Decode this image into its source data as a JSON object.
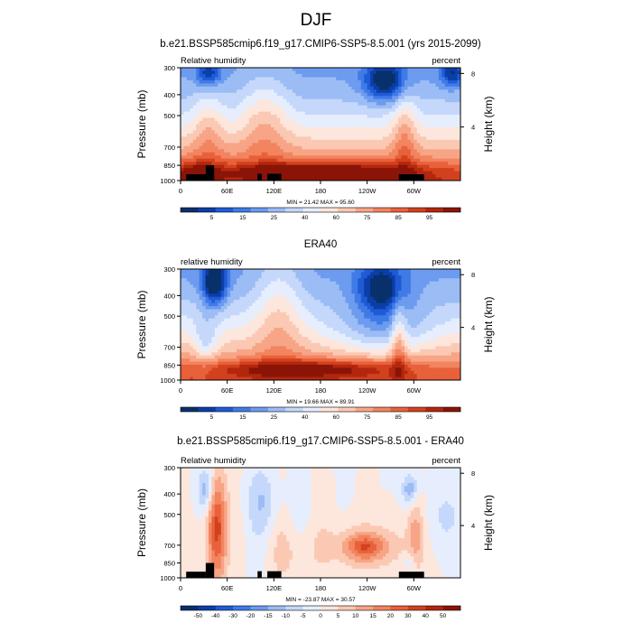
{
  "page": {
    "title": "DJF"
  },
  "colors": {
    "levels_abs": [
      "#08306b",
      "#0b3ea8",
      "#1f5bd6",
      "#3f7be6",
      "#6c9bef",
      "#9bbcf5",
      "#c5d8fb",
      "#e6eefd",
      "#fde6dc",
      "#fbc9b3",
      "#f7a586",
      "#f2845f",
      "#e8613a",
      "#d2411e",
      "#b3270e",
      "#8a1407"
    ],
    "levels_diff": [
      "#08306b",
      "#0b3ea8",
      "#1f5bd6",
      "#3f7be6",
      "#6c9bef",
      "#9bbcf5",
      "#c5d8fb",
      "#e6eefd",
      "#fde6dc",
      "#fbc9b3",
      "#f7a586",
      "#f2845f",
      "#e8613a",
      "#d2411e",
      "#b3270e",
      "#8a1407"
    ],
    "topography": "#000000"
  },
  "chart_data": [
    {
      "type": "heatmap",
      "title": "b.e21.BSSP585cmip6.f19_g17.CMIP6-SSP5-8.5.001 (yrs 2015-2099)",
      "left_label": "Relative humidity",
      "right_label": "percent",
      "ylabel": "Pressure (mb)",
      "y2label": "Height (km)",
      "x_ticks": [
        "0",
        "60E",
        "120E",
        "180",
        "120W",
        "60W"
      ],
      "y_ticks": [
        "300",
        "400",
        "500",
        "700",
        "850",
        "1000"
      ],
      "y2_ticks": [
        "8",
        "4"
      ],
      "stats": "MIN = 21.42  MAX = 95.60",
      "colorbar_labels": [
        "5",
        "15",
        "25",
        "40",
        "60",
        "75",
        "85",
        "95"
      ],
      "min": 21.42,
      "max": 95.6
    },
    {
      "type": "heatmap",
      "title": "ERA40",
      "left_label": "relative humidity",
      "right_label": "percent",
      "ylabel": "Pressure (mb)",
      "y2label": "Height (km)",
      "x_ticks": [
        "0",
        "60E",
        "120E",
        "180",
        "120W",
        "60W"
      ],
      "y_ticks": [
        "300",
        "400",
        "500",
        "700",
        "850",
        "1000"
      ],
      "y2_ticks": [
        "8",
        "4"
      ],
      "stats": "MIN = 19.66  MAX = 89.91",
      "colorbar_labels": [
        "5",
        "15",
        "25",
        "40",
        "60",
        "75",
        "85",
        "95"
      ],
      "min": 19.66,
      "max": 89.91
    },
    {
      "type": "heatmap",
      "title": "b.e21.BSSP585cmip6.f19_g17.CMIP6-SSP5-8.5.001 - ERA40",
      "left_label": "Relative humidity",
      "right_label": "percent",
      "ylabel": "Pressure (mb)",
      "y2label": "Height (km)",
      "x_ticks": [
        "0",
        "60E",
        "120E",
        "180",
        "120W",
        "60W"
      ],
      "y_ticks": [
        "300",
        "400",
        "500",
        "700",
        "850",
        "1000"
      ],
      "y2_ticks": [
        "8",
        "4"
      ],
      "stats": "MIN = -23.87  MAX = 30.57",
      "colorbar_labels": [
        "-50",
        "-40",
        "-30",
        "-20",
        "-15",
        "-10",
        "-5",
        "0",
        "5",
        "10",
        "15",
        "20",
        "30",
        "40",
        "50"
      ],
      "min": -23.87,
      "max": 30.57
    }
  ]
}
